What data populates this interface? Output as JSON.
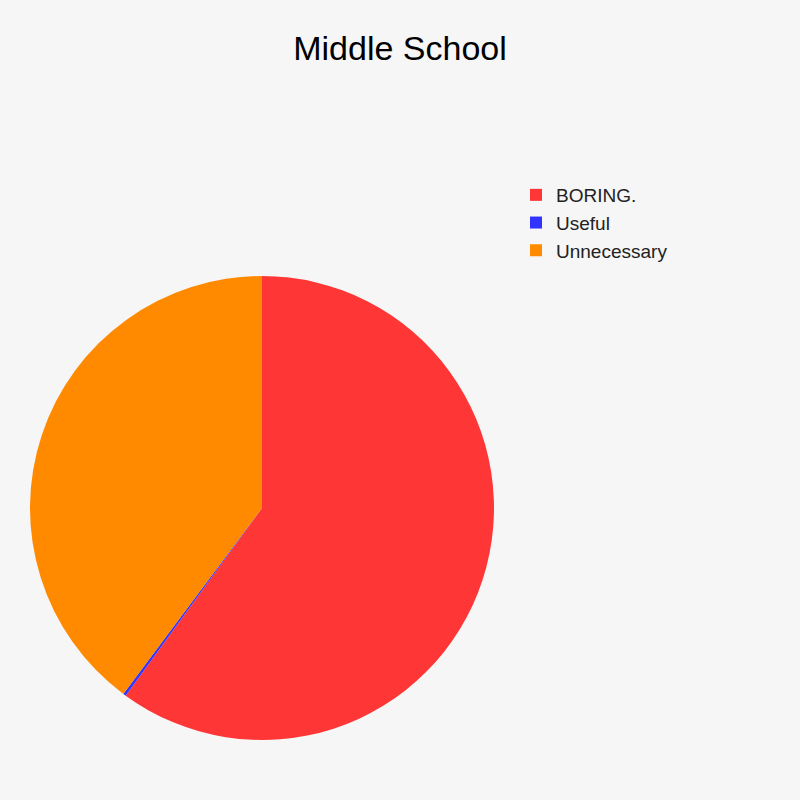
{
  "chart_data": {
    "type": "pie",
    "title": "Middle School",
    "categories": [
      "BORING.",
      "Useful",
      "Unnecessary"
    ],
    "values": [
      60,
      0.2,
      39.8
    ],
    "colors": [
      "#ff3636",
      "#3333ff",
      "#ff8a00"
    ],
    "legend": "right",
    "data_labels": false
  }
}
